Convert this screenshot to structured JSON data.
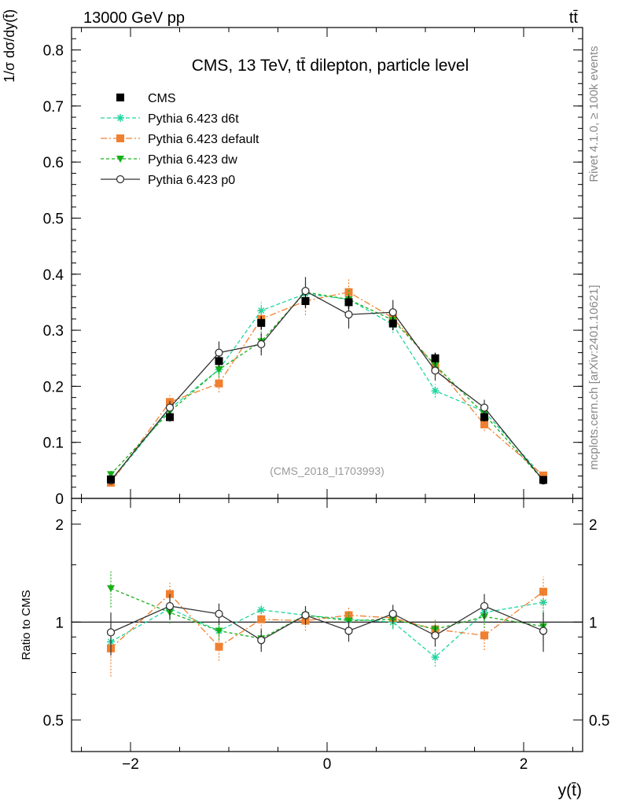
{
  "header": {
    "left": "13000 GeV pp",
    "right": "tt̄"
  },
  "side": {
    "rivet": "Rivet 4.1.0, ≥ 100k events",
    "mcplots": "mcplots.cern.ch [arXiv:2401.10621]"
  },
  "chart_data": {
    "type": "line",
    "title": "CMS, 13 TeV, tt̄ dilepton, particle level",
    "analysis_id": "(CMS_2018_I1703993)",
    "ylabel_main": "1/σ dσ/dy(t̄)",
    "ylabel_ratio": "Ratio to CMS",
    "xlabel": "y(t̄)",
    "xlim": [
      -2.6,
      2.6
    ],
    "ylim_main": [
      0,
      0.84
    ],
    "ylim_ratio": [
      0.4,
      2.4
    ],
    "x_ticks": [
      {
        "value": -2,
        "label": "−2"
      },
      {
        "value": 0,
        "label": "0"
      },
      {
        "value": 2,
        "label": "2"
      }
    ],
    "y_ticks_main": [
      {
        "value": 0.0,
        "label": "0"
      },
      {
        "value": 0.1,
        "label": "0.1"
      },
      {
        "value": 0.2,
        "label": "0.2"
      },
      {
        "value": 0.3,
        "label": "0.3"
      },
      {
        "value": 0.4,
        "label": "0.4"
      },
      {
        "value": 0.5,
        "label": "0.5"
      },
      {
        "value": 0.6,
        "label": "0.6"
      },
      {
        "value": 0.7,
        "label": "0.7"
      },
      {
        "value": 0.8,
        "label": "0.8"
      }
    ],
    "y_ticks_ratio": [
      {
        "value": 0.5,
        "label": "0.5"
      },
      {
        "value": 1,
        "label": "1"
      },
      {
        "value": 2,
        "label": "2"
      }
    ],
    "x": [
      -2.2,
      -1.6,
      -1.1,
      -0.67,
      -0.22,
      0.22,
      0.67,
      1.1,
      1.6,
      2.2
    ],
    "series": [
      {
        "name": "CMS",
        "color": "#000000",
        "style": "data",
        "marker": "square",
        "values": [
          0.034,
          0.145,
          0.245,
          0.313,
          0.352,
          0.35,
          0.312,
          0.25,
          0.145,
          0.033
        ],
        "errors": [
          0.004,
          0.008,
          0.01,
          0.012,
          0.012,
          0.012,
          0.012,
          0.01,
          0.008,
          0.004
        ]
      },
      {
        "name": "Pythia 6.423 d6t",
        "color": "#1fd6a0",
        "dash": "5,3",
        "marker": "star",
        "values": [
          0.03,
          0.16,
          0.23,
          0.335,
          0.365,
          0.355,
          0.31,
          0.192,
          0.155,
          0.038
        ],
        "errors": [
          0.004,
          0.01,
          0.012,
          0.015,
          0.015,
          0.015,
          0.015,
          0.012,
          0.01,
          0.004
        ]
      },
      {
        "name": "Pythia 6.423 default",
        "color": "#f08030",
        "dash": "8,3,2,3",
        "marker": "square",
        "values": [
          0.028,
          0.172,
          0.205,
          0.32,
          0.352,
          0.368,
          0.322,
          0.237,
          0.132,
          0.041
        ],
        "errors": [
          0.004,
          0.012,
          0.016,
          0.02,
          0.025,
          0.025,
          0.02,
          0.016,
          0.012,
          0.004
        ]
      },
      {
        "name": "Pythia 6.423 dw",
        "color": "#18b018",
        "dash": "4,3",
        "marker": "triangle-down",
        "values": [
          0.043,
          0.155,
          0.23,
          0.28,
          0.368,
          0.355,
          0.318,
          0.238,
          0.15,
          0.032
        ],
        "errors": [
          0.006,
          0.01,
          0.015,
          0.018,
          0.02,
          0.02,
          0.018,
          0.015,
          0.01,
          0.004
        ]
      },
      {
        "name": "Pythia 6.423 p0",
        "color": "#333333",
        "dash": "",
        "marker": "circle",
        "values": [
          0.032,
          0.162,
          0.26,
          0.275,
          0.37,
          0.328,
          0.332,
          0.228,
          0.162,
          0.032
        ],
        "errors": [
          0.004,
          0.012,
          0.02,
          0.02,
          0.025,
          0.025,
          0.022,
          0.018,
          0.014,
          0.004
        ]
      }
    ],
    "ratio_series": [
      {
        "name": "Pythia 6.423 d6t",
        "values": [
          0.87,
          1.1,
          0.94,
          1.09,
          1.05,
          1.02,
          1.0,
          0.78,
          1.07,
          1.15
        ],
        "errors": [
          0.06,
          0.07,
          0.05,
          0.05,
          0.05,
          0.05,
          0.05,
          0.05,
          0.07,
          0.1
        ]
      },
      {
        "name": "Pythia 6.423 default",
        "values": [
          0.83,
          1.22,
          0.84,
          1.02,
          1.01,
          1.05,
          1.03,
          0.95,
          0.91,
          1.24
        ],
        "errors": [
          0.15,
          0.1,
          0.08,
          0.07,
          0.07,
          0.07,
          0.07,
          0.07,
          0.09,
          0.14
        ]
      },
      {
        "name": "Pythia 6.423 dw",
        "values": [
          1.27,
          1.07,
          0.94,
          0.89,
          1.05,
          1.01,
          1.02,
          0.95,
          1.04,
          0.97
        ],
        "errors": [
          0.16,
          0.08,
          0.06,
          0.06,
          0.06,
          0.06,
          0.06,
          0.06,
          0.08,
          0.12
        ]
      },
      {
        "name": "Pythia 6.423 p0",
        "values": [
          0.93,
          1.12,
          1.06,
          0.88,
          1.05,
          0.94,
          1.06,
          0.91,
          1.12,
          0.94
        ],
        "errors": [
          0.14,
          0.1,
          0.08,
          0.07,
          0.07,
          0.07,
          0.07,
          0.07,
          0.1,
          0.13
        ]
      }
    ]
  }
}
